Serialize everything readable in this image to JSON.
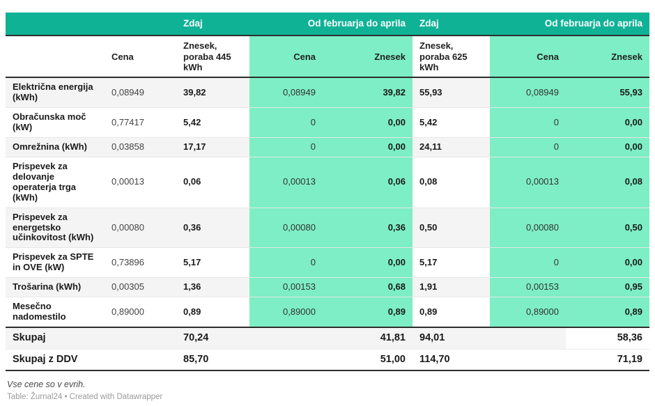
{
  "chart_data": {
    "type": "table",
    "group_headers": [
      "",
      "Zdaj",
      "Od februarja do aprila",
      "Zdaj",
      "Od februarja do aprila"
    ],
    "col_headers": [
      "",
      "Cena",
      "Znesek, poraba 445 kWh",
      "Cena",
      "Znesek",
      "Znesek, poraba 625 kWh",
      "Cena",
      "Znesek"
    ],
    "rows": [
      {
        "label": "Električna energija (kWh)",
        "values": [
          "0,08949",
          "39,82",
          "0,08949",
          "39,82",
          "55,93",
          "0,08949",
          "55,93"
        ]
      },
      {
        "label": "Obračunska moč (kW)",
        "values": [
          "0,77417",
          "5,42",
          "0",
          "0,00",
          "5,42",
          "0",
          "0,00"
        ]
      },
      {
        "label": "Omrežnina (kWh)",
        "values": [
          "0,03858",
          "17,17",
          "0",
          "0,00",
          "24,11",
          "0",
          "0,00"
        ]
      },
      {
        "label": "Prispevek za delovanje operaterja trga (kWh)",
        "values": [
          "0,00013",
          "0,06",
          "0,00013",
          "0,06",
          "0,08",
          "0,00013",
          "0,08"
        ]
      },
      {
        "label": "Prispevek za energetsko učinkovitost (kWh)",
        "values": [
          "0,00080",
          "0,36",
          "0,00080",
          "0,36",
          "0,50",
          "0,00080",
          "0,50"
        ]
      },
      {
        "label": "Prispevek za SPTE in OVE (kW)",
        "values": [
          "0,73896",
          "5,17",
          "0",
          "0,00",
          "5,17",
          "0",
          "0,00"
        ]
      },
      {
        "label": "Trošarina (kWh)",
        "values": [
          "0,00305",
          "1,36",
          "0,00153",
          "0,68",
          "1,91",
          "0,00153",
          "0,95"
        ]
      },
      {
        "label": "Mesečno nadomestilo",
        "values": [
          "0,89000",
          "0,89",
          "0,89000",
          "0,89",
          "0,89",
          "0,89000",
          "0,89"
        ]
      }
    ],
    "totals": [
      {
        "label": "Skupaj",
        "values": [
          "",
          "70,24",
          "",
          "41,81",
          "94,01",
          "",
          "58,36"
        ]
      },
      {
        "label": "Skupaj z DDV",
        "values": [
          "",
          "85,70",
          "",
          "51,00",
          "114,70",
          "",
          "71,19"
        ]
      }
    ],
    "footnote": "Vse cene so v evrih.",
    "credit": "Table: Žurnal24 • Created with Datawrapper",
    "colors": {
      "header_teal": "#10b296",
      "highlight_green": "#7deec6",
      "stripe_gray": "#f4f4f4",
      "border_dark": "#2d2d2d"
    }
  }
}
